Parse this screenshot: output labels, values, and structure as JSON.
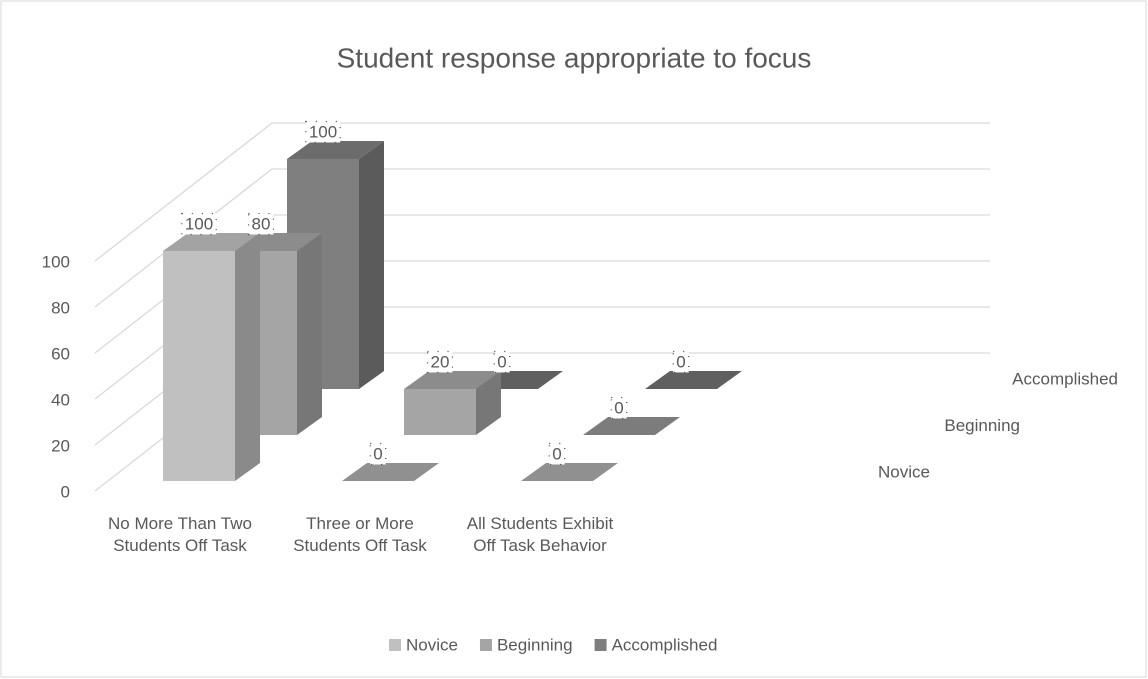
{
  "chart_data": {
    "type": "bar3d",
    "title": "Student response appropriate to focus",
    "categories": [
      "No More Than Two Students Off Task",
      "Three or More Students Off Task",
      "All Students Exhibit Off Task Behavior"
    ],
    "series": [
      {
        "name": "Novice",
        "color": "#c0c0c0",
        "values": [
          100,
          0,
          0
        ]
      },
      {
        "name": "Beginning",
        "color": "#a5a5a5",
        "values": [
          80,
          20,
          0
        ]
      },
      {
        "name": "Accomplished",
        "color": "#7f7f7f",
        "values": [
          100,
          0,
          0
        ]
      }
    ],
    "ylim": [
      0,
      100
    ],
    "yticks": [
      0,
      20,
      40,
      60,
      80,
      100
    ],
    "grid": true,
    "legend": "bottom"
  }
}
